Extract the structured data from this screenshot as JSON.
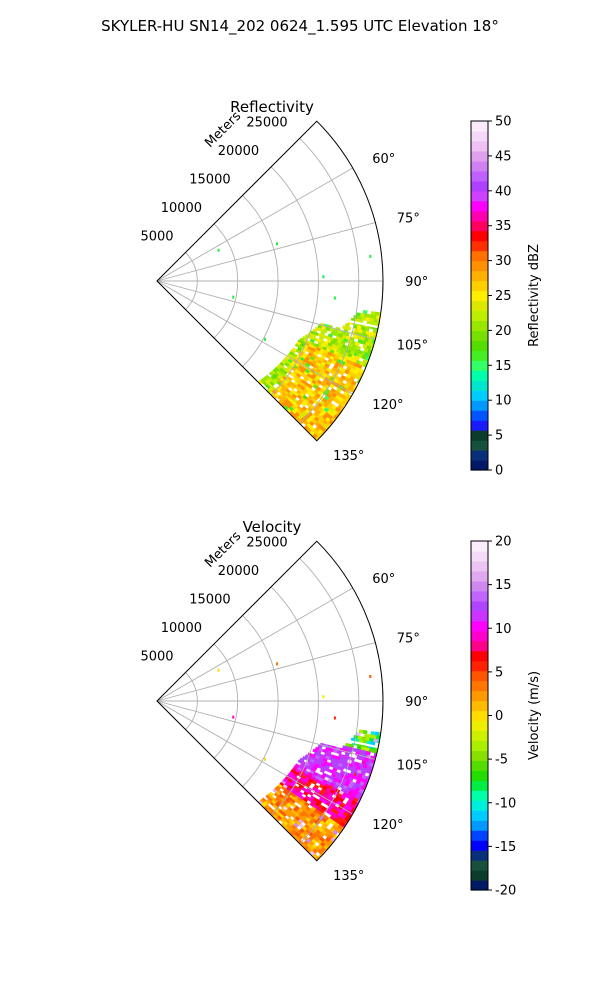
{
  "figure": {
    "suptitle": "SKYLER-HU  SN14_202  0624_1.595 UTC Elevation 18°"
  },
  "chart_data": [
    {
      "type": "heatmap",
      "title": "Reflectivity",
      "projection": "polar-sector",
      "range_label": "Meters",
      "range_ticks": [
        5000,
        10000,
        15000,
        20000,
        25000
      ],
      "range_max": 28000,
      "azimuth_range_deg": [
        45,
        135
      ],
      "azimuth_ticks": [
        60,
        75,
        90,
        105,
        120,
        135
      ],
      "grid": true,
      "colorbar": {
        "label": "Reflectivity dBZ",
        "ticks": [
          0,
          5,
          10,
          15,
          20,
          25,
          30,
          35,
          40,
          45,
          50
        ],
        "range": [
          0,
          50
        ]
      },
      "regions": [
        {
          "description": "green/yellow echo",
          "az": [
            98,
            135
          ],
          "range": [
            17000,
            28000
          ],
          "dbz_typical": [
            18,
            28
          ]
        }
      ]
    },
    {
      "type": "heatmap",
      "title": "Velocity",
      "projection": "polar-sector",
      "range_label": "Meters",
      "range_ticks": [
        5000,
        10000,
        15000,
        20000,
        25000
      ],
      "range_max": 28000,
      "azimuth_range_deg": [
        45,
        135
      ],
      "azimuth_ticks": [
        60,
        75,
        90,
        105,
        120,
        135
      ],
      "grid": true,
      "colorbar": {
        "label": "Velocity (m/s)",
        "ticks": [
          -20,
          -15,
          -10,
          -5,
          0,
          5,
          10,
          15,
          20
        ],
        "range": [
          -20,
          20
        ]
      },
      "regions": [
        {
          "description": "magenta/red/yellow echo",
          "az": [
            98,
            135
          ],
          "range": [
            17000,
            28000
          ],
          "velocity_typical": [
            0,
            15
          ]
        }
      ]
    }
  ]
}
